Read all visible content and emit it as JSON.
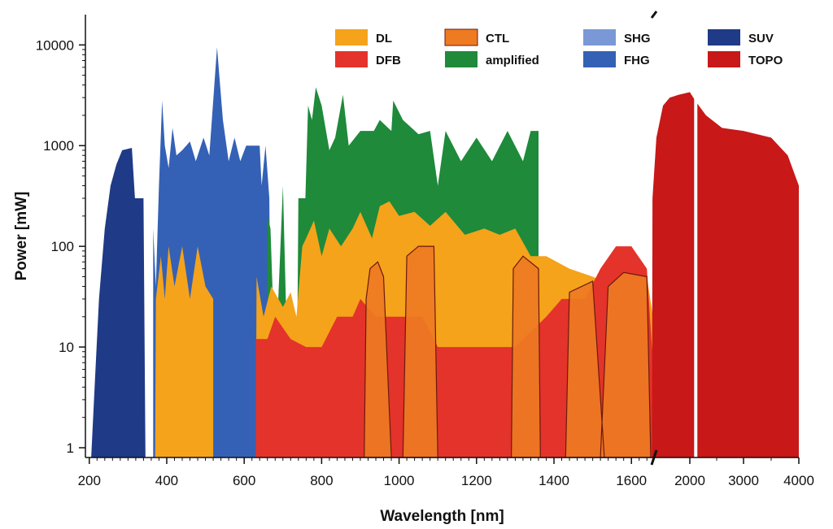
{
  "chart_data": {
    "type": "area",
    "title": "",
    "xlabel": "Wavelength [nm]",
    "ylabel": "Power [mW]",
    "y_scale": "log",
    "ylim": [
      0.8,
      20000
    ],
    "x_scale": "piecewise: linear 190-1650 nm, then 1650-4000 nm compressed (axis break)",
    "xlim": [
      190,
      4000
    ],
    "x_ticks": [
      "200",
      "400",
      "600",
      "800",
      "1000",
      "1200",
      "1400",
      "1600",
      "2000",
      "3000",
      "4000"
    ],
    "y_ticks": [
      "1",
      "10",
      "100",
      "1000",
      "10000"
    ],
    "grid": false,
    "legend_position": "top, inside plot",
    "legend": [
      {
        "name": "DL",
        "color": "#f5a31a"
      },
      {
        "name": "DFB",
        "color": "#e4332a"
      },
      {
        "name": "CTL",
        "color": "#ee7a22"
      },
      {
        "name": "amplified",
        "color": "#1e8a3a"
      },
      {
        "name": "SHG",
        "color": "#7a98d6"
      },
      {
        "name": "FHG",
        "color": "#3461b5"
      },
      {
        "name": "SUV",
        "color": "#1f3a86"
      },
      {
        "name": "TOPO",
        "color": "#c81818"
      }
    ],
    "series": [
      {
        "name": "SUV",
        "color": "#1f3a86",
        "points": [
          [
            205,
            0.8
          ],
          [
            215,
            5
          ],
          [
            225,
            30
          ],
          [
            240,
            150
          ],
          [
            255,
            400
          ],
          [
            270,
            650
          ],
          [
            285,
            900
          ],
          [
            310,
            950
          ],
          [
            318,
            300
          ],
          [
            340,
            300
          ],
          [
            345,
            0.8
          ]
        ]
      },
      {
        "name": "FHG",
        "color": "#3461b5",
        "points": [
          [
            365,
            0.8
          ],
          [
            365,
            150
          ],
          [
            372,
            40
          ],
          [
            380,
            400
          ],
          [
            388,
            2800
          ],
          [
            395,
            1000
          ],
          [
            405,
            600
          ],
          [
            415,
            1500
          ],
          [
            425,
            800
          ],
          [
            440,
            900
          ],
          [
            460,
            1100
          ],
          [
            475,
            700
          ],
          [
            495,
            1200
          ],
          [
            510,
            800
          ],
          [
            530,
            9500
          ],
          [
            545,
            1800
          ],
          [
            560,
            700
          ],
          [
            575,
            1200
          ],
          [
            590,
            700
          ],
          [
            605,
            1000
          ],
          [
            640,
            1000
          ],
          [
            645,
            400
          ],
          [
            655,
            1000
          ],
          [
            665,
            300
          ],
          [
            670,
            0.8
          ]
        ]
      },
      {
        "name": "amplified",
        "color": "#1e8a3a",
        "points": [
          [
            660,
            0.8
          ],
          [
            660,
            200
          ],
          [
            668,
            150
          ],
          [
            674,
            30
          ],
          [
            688,
            30
          ],
          [
            700,
            400
          ],
          [
            718,
            0.8
          ],
          [
            735,
            0.8
          ],
          [
            740,
            300
          ],
          [
            758,
            300
          ],
          [
            765,
            2500
          ],
          [
            775,
            1800
          ],
          [
            785,
            3800
          ],
          [
            800,
            2500
          ],
          [
            820,
            900
          ],
          [
            835,
            1200
          ],
          [
            855,
            3200
          ],
          [
            870,
            1000
          ],
          [
            900,
            1400
          ],
          [
            935,
            1400
          ],
          [
            950,
            1800
          ],
          [
            980,
            1400
          ],
          [
            985,
            2800
          ],
          [
            1010,
            1800
          ],
          [
            1050,
            1300
          ],
          [
            1080,
            1400
          ],
          [
            1100,
            400
          ],
          [
            1120,
            1400
          ],
          [
            1160,
            700
          ],
          [
            1200,
            1200
          ],
          [
            1240,
            700
          ],
          [
            1280,
            1400
          ],
          [
            1320,
            700
          ],
          [
            1340,
            1400
          ],
          [
            1360,
            1400
          ],
          [
            1360,
            0.8
          ]
        ]
      },
      {
        "name": "DL",
        "color": "#f5a31a",
        "points": [
          [
            370,
            0.8
          ],
          [
            372,
            30
          ],
          [
            385,
            80
          ],
          [
            395,
            30
          ],
          [
            405,
            100
          ],
          [
            420,
            40
          ],
          [
            440,
            100
          ],
          [
            460,
            30
          ],
          [
            480,
            100
          ],
          [
            500,
            40
          ],
          [
            520,
            30
          ],
          [
            520,
            0.8
          ],
          [
            630,
            0.8
          ],
          [
            632,
            50
          ],
          [
            650,
            20
          ],
          [
            670,
            40
          ],
          [
            700,
            25
          ],
          [
            720,
            35
          ],
          [
            735,
            20
          ],
          [
            750,
            100
          ],
          [
            760,
            120
          ],
          [
            780,
            180
          ],
          [
            800,
            80
          ],
          [
            820,
            150
          ],
          [
            850,
            100
          ],
          [
            880,
            150
          ],
          [
            900,
            220
          ],
          [
            930,
            120
          ],
          [
            950,
            250
          ],
          [
            975,
            280
          ],
          [
            1000,
            200
          ],
          [
            1040,
            220
          ],
          [
            1080,
            160
          ],
          [
            1120,
            220
          ],
          [
            1170,
            130
          ],
          [
            1220,
            150
          ],
          [
            1260,
            130
          ],
          [
            1300,
            150
          ],
          [
            1340,
            80
          ],
          [
            1380,
            80
          ],
          [
            1440,
            60
          ],
          [
            1500,
            50
          ],
          [
            1560,
            40
          ],
          [
            1610,
            40
          ],
          [
            1640,
            50
          ],
          [
            1670,
            20
          ],
          [
            1670,
            0.8
          ]
        ]
      },
      {
        "name": "DFB",
        "color": "#e4332a",
        "points": [
          [
            630,
            0.8
          ],
          [
            630,
            12
          ],
          [
            660,
            12
          ],
          [
            680,
            20
          ],
          [
            720,
            12
          ],
          [
            760,
            10
          ],
          [
            800,
            10
          ],
          [
            840,
            20
          ],
          [
            880,
            20
          ],
          [
            900,
            30
          ],
          [
            940,
            20
          ],
          [
            1000,
            20
          ],
          [
            1060,
            20
          ],
          [
            1100,
            10
          ],
          [
            1200,
            10
          ],
          [
            1300,
            10
          ],
          [
            1380,
            20
          ],
          [
            1420,
            30
          ],
          [
            1480,
            30
          ],
          [
            1520,
            60
          ],
          [
            1560,
            100
          ],
          [
            1600,
            100
          ],
          [
            1640,
            60
          ],
          [
            1660,
            10
          ],
          [
            1700,
            5
          ],
          [
            1800,
            3
          ],
          [
            2100,
            2
          ],
          [
            2500,
            1.5
          ],
          [
            3000,
            1
          ],
          [
            3500,
            1
          ],
          [
            3500,
            0.8
          ]
        ]
      },
      {
        "name": "CTL",
        "color": "#ee7a22",
        "points": [
          [
            910,
            0.8
          ],
          [
            915,
            30
          ],
          [
            925,
            60
          ],
          [
            945,
            70
          ],
          [
            960,
            50
          ],
          [
            980,
            0.8
          ],
          [
            1010,
            0.8
          ],
          [
            1020,
            80
          ],
          [
            1050,
            100
          ],
          [
            1090,
            100
          ],
          [
            1100,
            0.8
          ],
          [
            1290,
            0.8
          ],
          [
            1295,
            60
          ],
          [
            1320,
            80
          ],
          [
            1360,
            60
          ],
          [
            1365,
            0.8
          ],
          [
            1430,
            0.8
          ],
          [
            1440,
            35
          ],
          [
            1500,
            45
          ],
          [
            1530,
            0.8
          ],
          [
            1520,
            0.8
          ],
          [
            1540,
            40
          ],
          [
            1580,
            55
          ],
          [
            1640,
            50
          ],
          [
            1650,
            0.8
          ]
        ]
      },
      {
        "name": "TOPO",
        "color": "#c81818",
        "points": [
          [
            1660,
            0.8
          ],
          [
            1665,
            300
          ],
          [
            1700,
            1200
          ],
          [
            1760,
            2500
          ],
          [
            1820,
            3000
          ],
          [
            1900,
            3200
          ],
          [
            2000,
            3400
          ],
          [
            2100,
            2800
          ],
          [
            2300,
            2000
          ],
          [
            2600,
            1500
          ],
          [
            3000,
            1400
          ],
          [
            3500,
            1200
          ],
          [
            3800,
            800
          ],
          [
            4000,
            400
          ],
          [
            4000,
            0.8
          ]
        ]
      }
    ]
  }
}
